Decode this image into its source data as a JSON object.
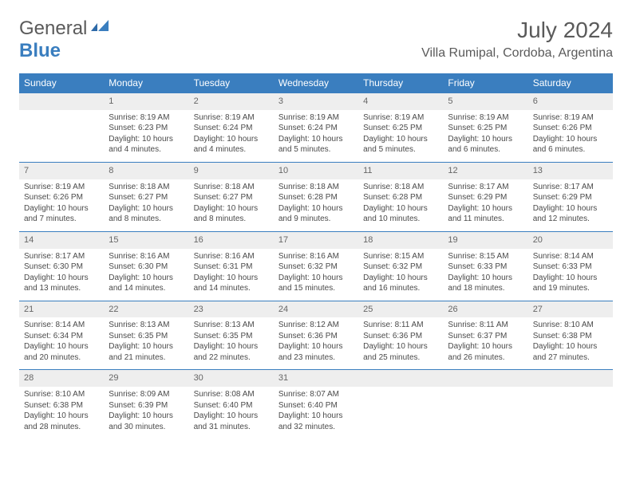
{
  "brand": {
    "line1": "General",
    "line2": "Blue"
  },
  "title": "July 2024",
  "location": "Villa Rumipal, Cordoba, Argentina",
  "colors": {
    "header_bg": "#3a7ebf",
    "header_text": "#ffffff",
    "daynum_bg": "#eeeeee",
    "text": "#4a4a4a",
    "title_text": "#5a5a5a"
  },
  "day_headers": [
    "Sunday",
    "Monday",
    "Tuesday",
    "Wednesday",
    "Thursday",
    "Friday",
    "Saturday"
  ],
  "weeks": [
    [
      null,
      {
        "n": "1",
        "sr": "8:19 AM",
        "ss": "6:23 PM",
        "dl": "10 hours and 4 minutes."
      },
      {
        "n": "2",
        "sr": "8:19 AM",
        "ss": "6:24 PM",
        "dl": "10 hours and 4 minutes."
      },
      {
        "n": "3",
        "sr": "8:19 AM",
        "ss": "6:24 PM",
        "dl": "10 hours and 5 minutes."
      },
      {
        "n": "4",
        "sr": "8:19 AM",
        "ss": "6:25 PM",
        "dl": "10 hours and 5 minutes."
      },
      {
        "n": "5",
        "sr": "8:19 AM",
        "ss": "6:25 PM",
        "dl": "10 hours and 6 minutes."
      },
      {
        "n": "6",
        "sr": "8:19 AM",
        "ss": "6:26 PM",
        "dl": "10 hours and 6 minutes."
      }
    ],
    [
      {
        "n": "7",
        "sr": "8:19 AM",
        "ss": "6:26 PM",
        "dl": "10 hours and 7 minutes."
      },
      {
        "n": "8",
        "sr": "8:18 AM",
        "ss": "6:27 PM",
        "dl": "10 hours and 8 minutes."
      },
      {
        "n": "9",
        "sr": "8:18 AM",
        "ss": "6:27 PM",
        "dl": "10 hours and 8 minutes."
      },
      {
        "n": "10",
        "sr": "8:18 AM",
        "ss": "6:28 PM",
        "dl": "10 hours and 9 minutes."
      },
      {
        "n": "11",
        "sr": "8:18 AM",
        "ss": "6:28 PM",
        "dl": "10 hours and 10 minutes."
      },
      {
        "n": "12",
        "sr": "8:17 AM",
        "ss": "6:29 PM",
        "dl": "10 hours and 11 minutes."
      },
      {
        "n": "13",
        "sr": "8:17 AM",
        "ss": "6:29 PM",
        "dl": "10 hours and 12 minutes."
      }
    ],
    [
      {
        "n": "14",
        "sr": "8:17 AM",
        "ss": "6:30 PM",
        "dl": "10 hours and 13 minutes."
      },
      {
        "n": "15",
        "sr": "8:16 AM",
        "ss": "6:30 PM",
        "dl": "10 hours and 14 minutes."
      },
      {
        "n": "16",
        "sr": "8:16 AM",
        "ss": "6:31 PM",
        "dl": "10 hours and 14 minutes."
      },
      {
        "n": "17",
        "sr": "8:16 AM",
        "ss": "6:32 PM",
        "dl": "10 hours and 15 minutes."
      },
      {
        "n": "18",
        "sr": "8:15 AM",
        "ss": "6:32 PM",
        "dl": "10 hours and 16 minutes."
      },
      {
        "n": "19",
        "sr": "8:15 AM",
        "ss": "6:33 PM",
        "dl": "10 hours and 18 minutes."
      },
      {
        "n": "20",
        "sr": "8:14 AM",
        "ss": "6:33 PM",
        "dl": "10 hours and 19 minutes."
      }
    ],
    [
      {
        "n": "21",
        "sr": "8:14 AM",
        "ss": "6:34 PM",
        "dl": "10 hours and 20 minutes."
      },
      {
        "n": "22",
        "sr": "8:13 AM",
        "ss": "6:35 PM",
        "dl": "10 hours and 21 minutes."
      },
      {
        "n": "23",
        "sr": "8:13 AM",
        "ss": "6:35 PM",
        "dl": "10 hours and 22 minutes."
      },
      {
        "n": "24",
        "sr": "8:12 AM",
        "ss": "6:36 PM",
        "dl": "10 hours and 23 minutes."
      },
      {
        "n": "25",
        "sr": "8:11 AM",
        "ss": "6:36 PM",
        "dl": "10 hours and 25 minutes."
      },
      {
        "n": "26",
        "sr": "8:11 AM",
        "ss": "6:37 PM",
        "dl": "10 hours and 26 minutes."
      },
      {
        "n": "27",
        "sr": "8:10 AM",
        "ss": "6:38 PM",
        "dl": "10 hours and 27 minutes."
      }
    ],
    [
      {
        "n": "28",
        "sr": "8:10 AM",
        "ss": "6:38 PM",
        "dl": "10 hours and 28 minutes."
      },
      {
        "n": "29",
        "sr": "8:09 AM",
        "ss": "6:39 PM",
        "dl": "10 hours and 30 minutes."
      },
      {
        "n": "30",
        "sr": "8:08 AM",
        "ss": "6:40 PM",
        "dl": "10 hours and 31 minutes."
      },
      {
        "n": "31",
        "sr": "8:07 AM",
        "ss": "6:40 PM",
        "dl": "10 hours and 32 minutes."
      },
      null,
      null,
      null
    ]
  ],
  "labels": {
    "sunrise": "Sunrise: ",
    "sunset": "Sunset: ",
    "daylight": "Daylight: "
  }
}
